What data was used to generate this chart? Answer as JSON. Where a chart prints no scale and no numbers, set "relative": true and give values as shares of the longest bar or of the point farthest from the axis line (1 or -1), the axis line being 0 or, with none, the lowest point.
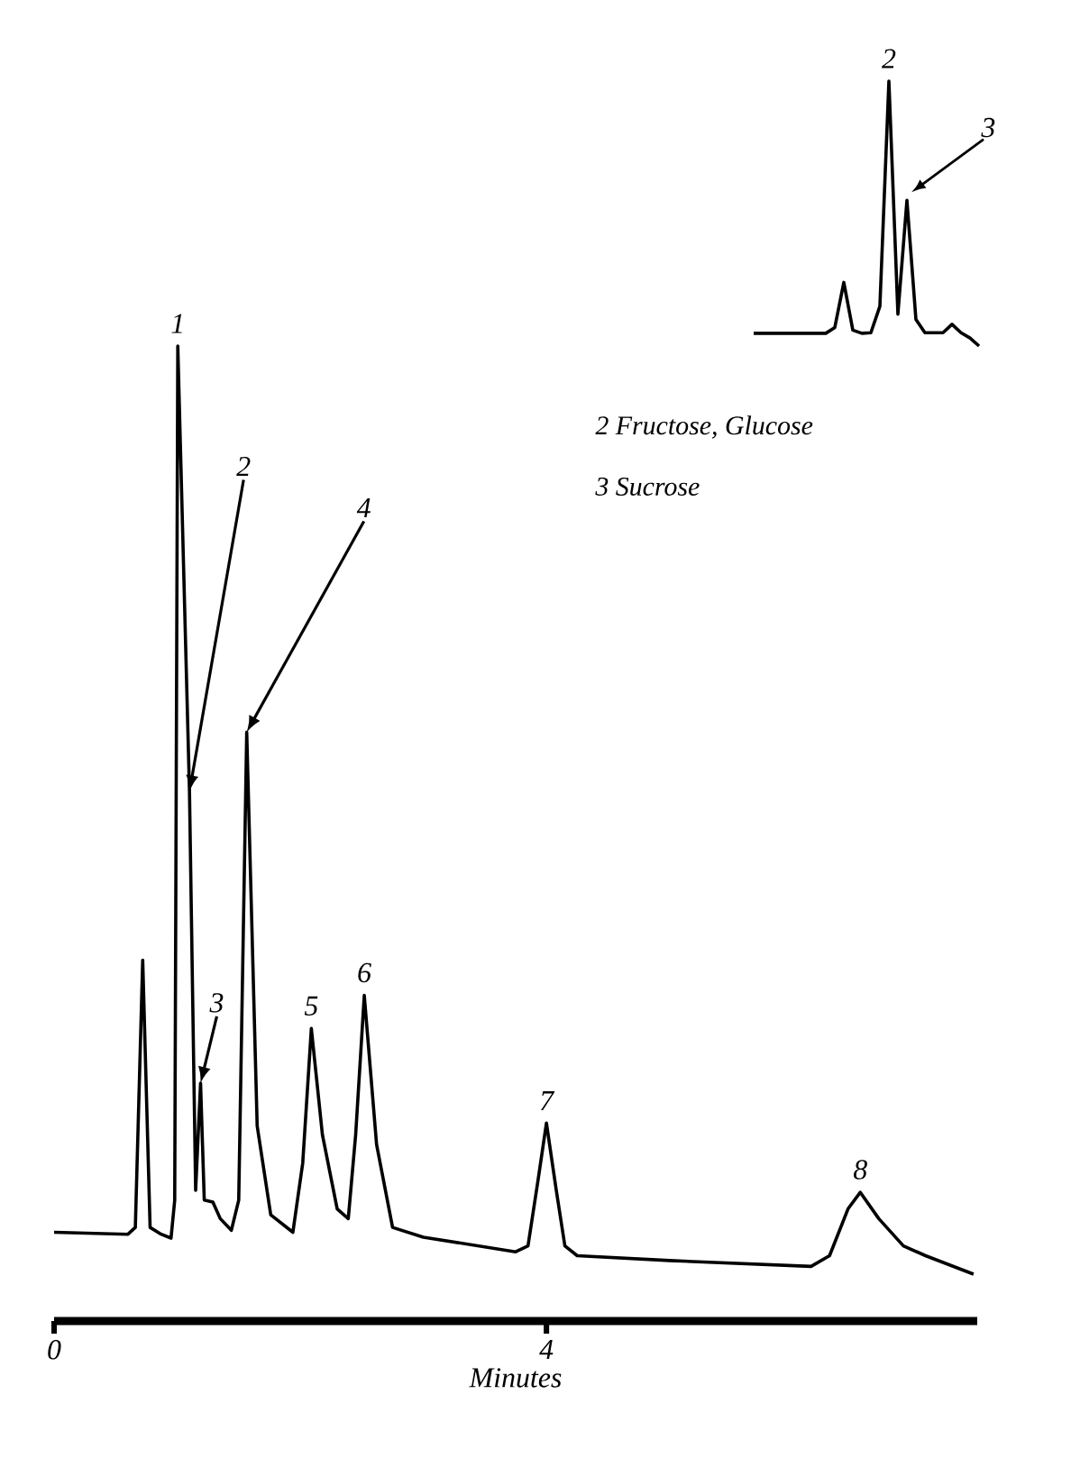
{
  "chart_data": [
    {
      "type": "line",
      "relative": true,
      "xlabel": "Minutes",
      "xlim": [
        0,
        7.5
      ],
      "xticks": [
        0,
        4
      ],
      "series": [
        {
          "color": "#000000",
          "x": [
            0,
            0.6,
            0.66,
            0.72,
            0.78,
            0.87,
            0.95,
            0.98,
            1.005,
            1.1,
            1.15,
            1.19,
            1.22,
            1.29,
            1.35,
            1.44,
            1.5,
            1.565,
            1.65,
            1.76,
            1.94,
            2.02,
            2.09,
            2.18,
            2.3,
            2.39,
            2.45,
            2.52,
            2.62,
            2.75,
            3.0,
            3.75,
            3.85,
            3.93,
            4.0,
            4.08,
            4.15,
            4.25,
            5.0,
            6.15,
            6.3,
            6.45,
            6.55,
            6.7,
            6.9,
            7.08,
            7.47
          ],
          "values": [
            0.091,
            0.089,
            0.096,
            0.37,
            0.096,
            0.089,
            0.085,
            0.124,
            1.0,
            0.543,
            0.134,
            0.244,
            0.124,
            0.122,
            0.105,
            0.093,
            0.124,
            0.604,
            0.2,
            0.109,
            0.091,
            0.162,
            0.3,
            0.191,
            0.115,
            0.105,
            0.191,
            0.334,
            0.181,
            0.096,
            0.086,
            0.071,
            0.077,
            0.143,
            0.203,
            0.134,
            0.077,
            0.067,
            0.062,
            0.056,
            0.067,
            0.115,
            0.132,
            0.105,
            0.077,
            0.067,
            0.048
          ]
        }
      ],
      "annotations": [
        {
          "text": "1",
          "x": 1.005,
          "y": 1.0
        },
        {
          "text": "2",
          "x": 1.1,
          "y": 0.543
        },
        {
          "text": "3",
          "x": 1.19,
          "y": 0.244
        },
        {
          "text": "4",
          "x": 1.565,
          "y": 0.604
        },
        {
          "text": "5",
          "x": 2.09,
          "y": 0.3
        },
        {
          "text": "6",
          "x": 2.52,
          "y": 0.334
        },
        {
          "text": "7",
          "x": 4.0,
          "y": 0.203
        },
        {
          "text": "8",
          "x": 6.55,
          "y": 0.132
        }
      ]
    },
    {
      "type": "line",
      "relative": true,
      "categories": [
        null,
        null,
        null,
        null,
        null,
        null,
        null,
        null,
        null,
        null,
        null,
        null,
        null,
        null,
        null,
        null,
        null,
        null,
        null,
        null,
        null,
        null,
        null,
        null,
        null,
        null
      ],
      "series": [
        {
          "color": "#000000",
          "values": [
            0.048,
            0.048,
            0.048,
            0.048,
            0.048,
            0.048,
            0.048,
            0.048,
            0.048,
            0.07,
            0.24,
            0.06,
            0.048,
            0.05,
            0.15,
            1.0,
            0.12,
            0.55,
            0.1,
            0.05,
            0.05,
            0.05,
            0.082,
            0.05,
            0.03,
            0.0
          ]
        }
      ],
      "annotations": [
        {
          "text": "2",
          "y": 1.0
        },
        "3",
        "2 Fructose, Glucose",
        "3 Sucrose"
      ]
    }
  ]
}
